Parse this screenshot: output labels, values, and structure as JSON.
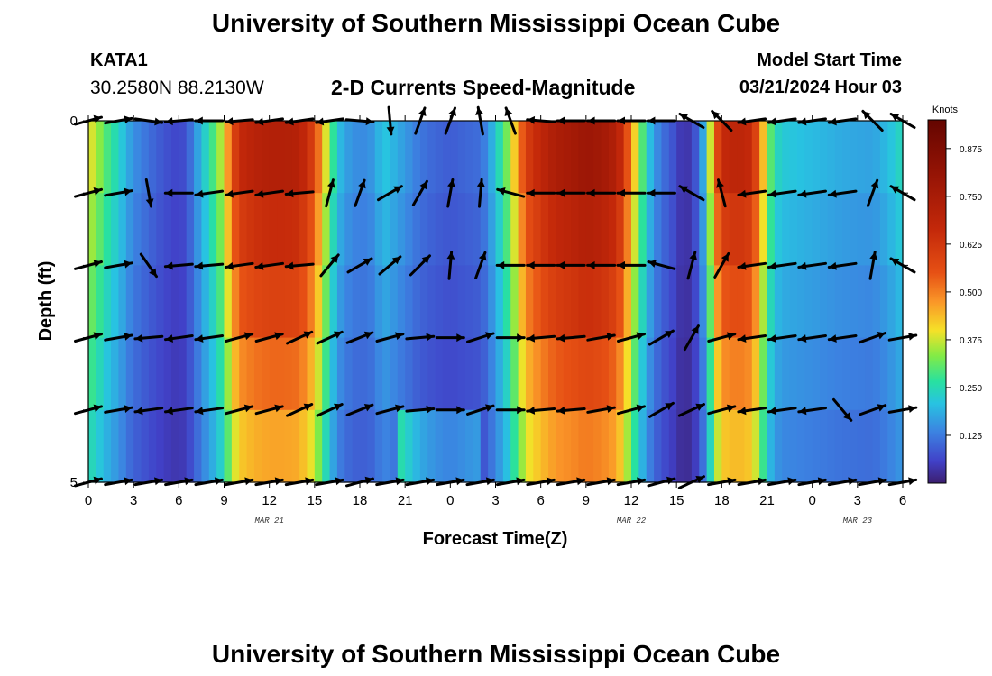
{
  "header": {
    "title": "University of Southern Mississippi Ocean Cube",
    "station": "KATA1",
    "coordinates": "30.2580N  88.2130W",
    "subtitle": "2-D Currents Speed-Magnitude",
    "model_start_label": "Model Start Time",
    "model_start_value": "03/21/2024 Hour 03"
  },
  "footer": {
    "title": "University of Southern Mississippi Ocean Cube"
  },
  "colors": {
    "arrow": "#000000",
    "axis": "#000000"
  },
  "chart_data": {
    "type": "heatmap",
    "title": "2-D Currents Speed-Magnitude",
    "xlabel": "Forecast Time(Z)",
    "ylabel": "Depth (ft)",
    "x_tick_labels": [
      "0",
      "3",
      "6",
      "9",
      "12",
      "15",
      "18",
      "21",
      "0",
      "3",
      "6",
      "9",
      "12",
      "15",
      "18",
      "21",
      "0",
      "3",
      "6"
    ],
    "date_labels": [
      {
        "text": "MAR 21",
        "hour": 12
      },
      {
        "text": "MAR 22",
        "hour": 36
      },
      {
        "text": "MAR 23",
        "hour": 51
      }
    ],
    "x_range_hours": [
      0,
      54
    ],
    "y_range_ft": [
      0,
      5
    ],
    "y_tick_labels": [
      {
        "text": "0",
        "depth": 0
      },
      {
        "text": "5",
        "depth": 5
      }
    ],
    "colorbar": {
      "unit": "Knots",
      "range": [
        0,
        0.95
      ],
      "ticks": [
        "0.125",
        "0.250",
        "0.375",
        "0.500",
        "0.625",
        "0.750",
        "0.875"
      ],
      "tick_values": [
        0.125,
        0.25,
        0.375,
        0.5,
        0.625,
        0.75,
        0.875
      ]
    },
    "speed_profile_knots": [
      [
        0,
        0.4
      ],
      [
        0.5,
        0.36
      ],
      [
        1,
        0.31
      ],
      [
        1.5,
        0.27
      ],
      [
        2,
        0.24
      ],
      [
        2.5,
        0.19
      ],
      [
        3,
        0.15
      ],
      [
        4,
        0.11
      ],
      [
        5,
        0.08
      ],
      [
        6,
        0.06
      ],
      [
        6.5,
        0.08
      ],
      [
        7,
        0.14
      ],
      [
        7.5,
        0.2
      ],
      [
        8,
        0.26
      ],
      [
        8.5,
        0.31
      ],
      [
        9,
        0.4
      ],
      [
        9.5,
        0.55
      ],
      [
        10,
        0.66
      ],
      [
        11,
        0.7
      ],
      [
        12,
        0.72
      ],
      [
        13,
        0.72
      ],
      [
        14,
        0.71
      ],
      [
        15,
        0.58
      ],
      [
        15.5,
        0.45
      ],
      [
        16,
        0.32
      ],
      [
        16.5,
        0.22
      ],
      [
        17,
        0.17
      ],
      [
        18,
        0.14
      ],
      [
        19,
        0.16
      ],
      [
        19.5,
        0.22
      ],
      [
        20,
        0.2
      ],
      [
        21,
        0.16
      ],
      [
        22,
        0.12
      ],
      [
        23,
        0.1
      ],
      [
        24,
        0.09
      ],
      [
        25,
        0.1
      ],
      [
        26,
        0.11
      ],
      [
        26.5,
        0.15
      ],
      [
        27,
        0.22
      ],
      [
        27.5,
        0.28
      ],
      [
        28,
        0.36
      ],
      [
        28.5,
        0.48
      ],
      [
        29,
        0.6
      ],
      [
        30,
        0.68
      ],
      [
        31,
        0.74
      ],
      [
        32,
        0.76
      ],
      [
        33,
        0.79
      ],
      [
        34,
        0.77
      ],
      [
        35,
        0.72
      ],
      [
        35.5,
        0.62
      ],
      [
        36,
        0.48
      ],
      [
        36.5,
        0.35
      ],
      [
        37,
        0.24
      ],
      [
        37.5,
        0.16
      ],
      [
        38,
        0.12
      ],
      [
        38.5,
        0.09
      ],
      [
        39,
        0.07
      ],
      [
        39.5,
        0.02
      ],
      [
        40,
        0.06
      ],
      [
        40.5,
        0.1
      ],
      [
        41,
        0.25
      ],
      [
        41.5,
        0.5
      ],
      [
        42,
        0.66
      ],
      [
        43,
        0.69
      ],
      [
        44,
        0.66
      ],
      [
        44.5,
        0.52
      ],
      [
        45,
        0.35
      ],
      [
        45.5,
        0.25
      ],
      [
        46,
        0.22
      ],
      [
        48,
        0.2
      ],
      [
        50,
        0.18
      ],
      [
        52,
        0.17
      ],
      [
        53,
        0.2
      ],
      [
        54,
        0.25
      ]
    ],
    "arrow_columns_hours": [
      0,
      2,
      4,
      6,
      8,
      10,
      12,
      14,
      16,
      18,
      20,
      22,
      24,
      26,
      28,
      30,
      32,
      34,
      36,
      38,
      40,
      42,
      44,
      46,
      48,
      50,
      52,
      54
    ],
    "arrow_rows_ft": [
      0,
      1,
      2,
      3,
      4,
      5
    ],
    "arrow_direction_deg": [
      [
        75,
        80,
        98,
        265,
        270,
        265,
        262,
        262,
        262,
        95,
        175,
        20,
        20,
        350,
        340,
        275,
        270,
        270,
        270,
        270,
        300,
        315,
        262,
        262,
        262,
        262,
        315,
        300
      ],
      [
        75,
        80,
        170,
        270,
        262,
        262,
        262,
        265,
        15,
        20,
        60,
        30,
        10,
        5,
        285,
        270,
        270,
        270,
        270,
        270,
        300,
        345,
        262,
        262,
        262,
        262,
        20,
        300
      ],
      [
        75,
        80,
        145,
        265,
        265,
        262,
        262,
        265,
        40,
        60,
        50,
        45,
        5,
        20,
        270,
        270,
        270,
        270,
        270,
        285,
        15,
        30,
        262,
        262,
        262,
        262,
        10,
        300
      ],
      [
        75,
        80,
        265,
        262,
        262,
        75,
        75,
        65,
        65,
        68,
        75,
        85,
        90,
        72,
        90,
        265,
        265,
        80,
        75,
        60,
        30,
        75,
        262,
        262,
        262,
        262,
        70,
        80
      ],
      [
        75,
        80,
        262,
        262,
        262,
        75,
        75,
        65,
        65,
        68,
        75,
        85,
        90,
        72,
        90,
        265,
        265,
        80,
        75,
        60,
        65,
        75,
        262,
        262,
        262,
        140,
        70,
        80
      ],
      [
        75,
        80,
        80,
        80,
        80,
        80,
        80,
        80,
        80,
        75,
        80,
        80,
        80,
        80,
        80,
        80,
        80,
        80,
        80,
        75,
        65,
        80,
        80,
        80,
        80,
        80,
        80,
        80
      ]
    ]
  }
}
